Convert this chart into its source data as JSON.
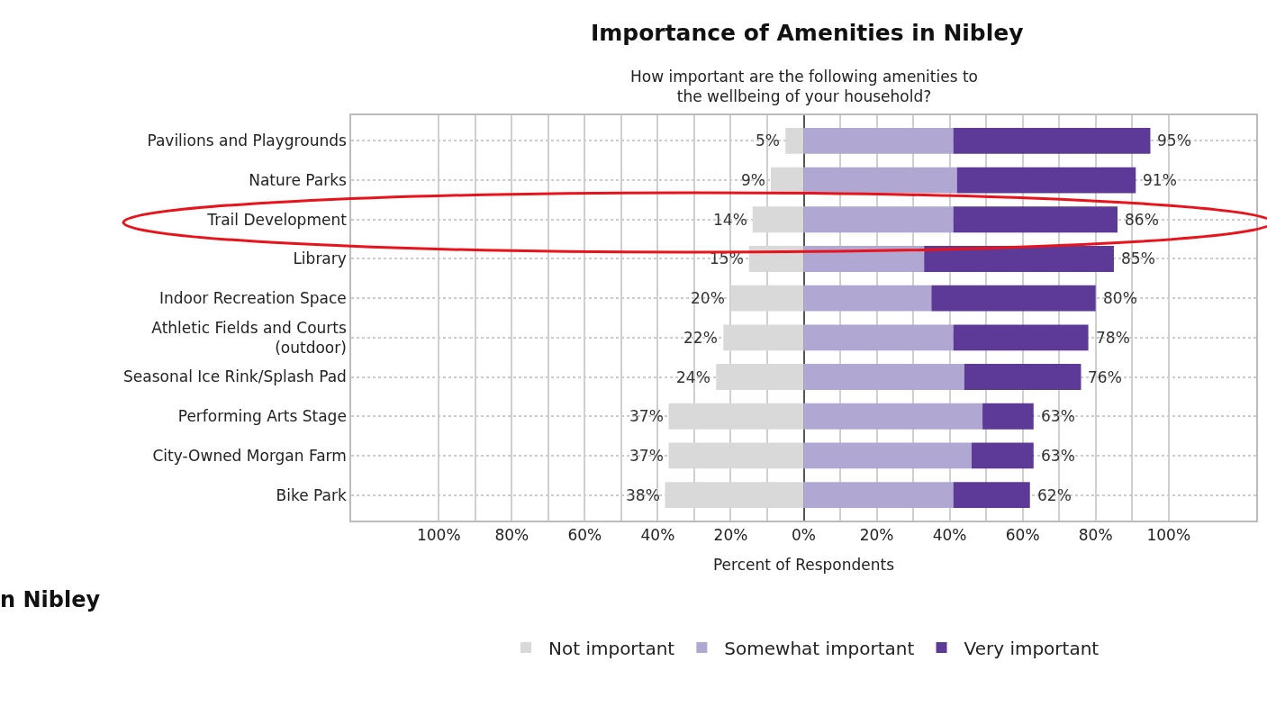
{
  "chart_data": {
    "type": "bar",
    "orientation": "horizontal",
    "stacked": true,
    "title": "Importance of Amenities in Nibley",
    "subtitle": "How important are the following amenities to the wellbeing of your household?",
    "xlabel": "Percent of Respondents",
    "categories": [
      "Pavilions and Playgrounds",
      "Nature Parks",
      "Trail Development",
      "Library",
      "Indoor Recreation Space",
      "Athletic Fields and Courts (outdoor)",
      "Seasonal Ice Rink/Splash Pad",
      "Performing Arts Stage",
      "City-Owned Morgan Farm",
      "Bike Park"
    ],
    "series": [
      {
        "name": "Not important",
        "color": "#d9d9d9",
        "values": [
          5,
          9,
          14,
          15,
          20,
          22,
          24,
          37,
          37,
          38
        ],
        "base": [
          -5,
          -9,
          -14,
          -15,
          -20,
          -22,
          -24,
          -37,
          -37,
          -38
        ],
        "value_labels": [
          "5%",
          "9%",
          "14%",
          "15%",
          "20%",
          "22%",
          "24%",
          "37%",
          "37%",
          "38%"
        ]
      },
      {
        "name": "Somewhat important",
        "color": "#b0a8d2",
        "values": [
          41,
          42,
          41,
          33,
          35,
          41,
          44,
          49,
          46,
          41
        ]
      },
      {
        "name": "Very important",
        "color": "#5e3a98",
        "values": [
          54,
          49,
          45,
          52,
          45,
          37,
          32,
          14,
          17,
          21
        ]
      }
    ],
    "xlim": [
      -124,
      124
    ],
    "xticks": [
      {
        "value": -100,
        "label": "100%"
      },
      {
        "value": -90,
        "label": null
      },
      {
        "value": -80,
        "label": "80%"
      },
      {
        "value": -70,
        "label": null
      },
      {
        "value": -60,
        "label": "60%"
      },
      {
        "value": -50,
        "label": null
      },
      {
        "value": -40,
        "label": "40%"
      },
      {
        "value": -30,
        "label": null
      },
      {
        "value": -20,
        "label": "20%"
      },
      {
        "value": -10,
        "label": null
      },
      {
        "value": 0,
        "label": "0%"
      },
      {
        "value": 10,
        "label": null
      },
      {
        "value": 20,
        "label": "20%"
      },
      {
        "value": 30,
        "label": null
      },
      {
        "value": 40,
        "label": "40%"
      },
      {
        "value": 50,
        "label": null
      },
      {
        "value": 60,
        "label": "60%"
      },
      {
        "value": 70,
        "label": null
      },
      {
        "value": 80,
        "label": "80%"
      },
      {
        "value": 90,
        "label": null
      },
      {
        "value": 100,
        "label": "100%"
      }
    ],
    "grid": true,
    "legend": "bottom",
    "annotations": [
      "n Nibley",
      {
        "text": "95%",
        "x": 95,
        "y": "Pavilions and Playgrounds"
      },
      {
        "text": "91%",
        "x": 91,
        "y": "Nature Parks"
      },
      {
        "text": "86%",
        "x": 86,
        "y": "Trail Development"
      },
      {
        "text": "85%",
        "x": 85,
        "y": "Library"
      },
      {
        "text": "80%",
        "x": 80,
        "y": "Indoor Recreation Space"
      },
      {
        "text": "78%",
        "x": 78,
        "y": "Athletic Fields and Courts (outdoor)"
      },
      {
        "text": "76%",
        "x": 76,
        "y": "Seasonal Ice Rink/Splash Pad"
      },
      {
        "text": "63%",
        "x": 63,
        "y": "Performing Arts Stage"
      },
      {
        "text": "63%",
        "x": 63,
        "y": "City-Owned Morgan Farm"
      },
      {
        "text": "62%",
        "x": 62,
        "y": "Bike Park"
      }
    ]
  }
}
